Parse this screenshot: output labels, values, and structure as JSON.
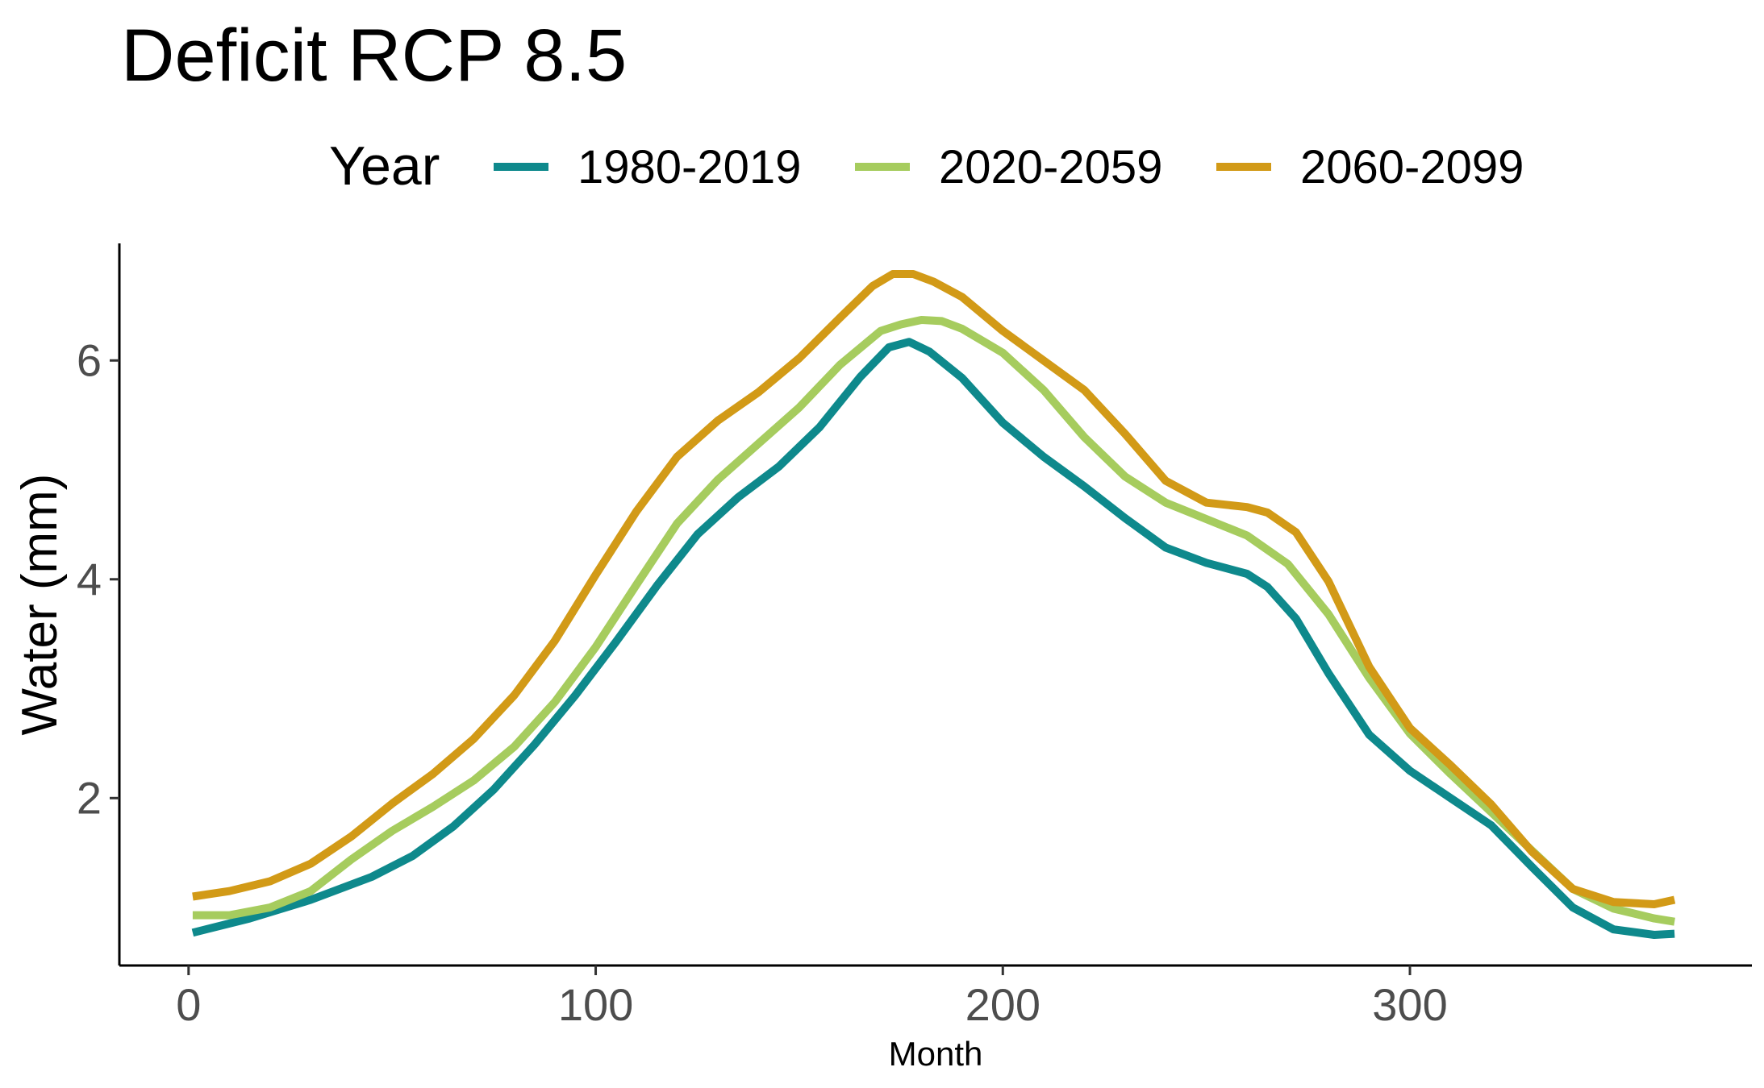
{
  "chart_data": {
    "type": "line",
    "title": "Deficit RCP 8.5",
    "xlabel": "Month",
    "ylabel": "Water (mm)",
    "xlim": [
      -17,
      384
    ],
    "ylim": [
      0.47,
      7.07
    ],
    "x_ticks": [
      0,
      100,
      200,
      300
    ],
    "y_ticks": [
      2,
      4,
      6
    ],
    "grid": false,
    "legend": {
      "title": "Year",
      "position": "top"
    },
    "series": [
      {
        "name": "1980-2019",
        "color": "#0e898c",
        "x": [
          1,
          15,
          30,
          45,
          55,
          65,
          75,
          85,
          95,
          105,
          115,
          125,
          135,
          145,
          155,
          165,
          172,
          177,
          182,
          190,
          200,
          210,
          220,
          230,
          240,
          250,
          260,
          265,
          272,
          280,
          290,
          300,
          310,
          320,
          330,
          340,
          350,
          360,
          365
        ],
        "y": [
          0.77,
          0.9,
          1.07,
          1.28,
          1.47,
          1.74,
          2.08,
          2.49,
          2.94,
          3.43,
          3.94,
          4.41,
          4.75,
          5.03,
          5.39,
          5.85,
          6.12,
          6.17,
          6.08,
          5.84,
          5.43,
          5.12,
          4.85,
          4.56,
          4.29,
          4.15,
          4.05,
          3.93,
          3.64,
          3.14,
          2.58,
          2.25,
          2.0,
          1.75,
          1.37,
          1.0,
          0.8,
          0.75,
          0.76
        ]
      },
      {
        "name": "2020-2059",
        "color": "#a6cc5e",
        "x": [
          1,
          10,
          20,
          30,
          40,
          50,
          60,
          70,
          80,
          90,
          100,
          110,
          120,
          130,
          140,
          150,
          160,
          170,
          175,
          180,
          185,
          190,
          200,
          210,
          220,
          230,
          240,
          250,
          260,
          270,
          280,
          290,
          300,
          310,
          320,
          330,
          340,
          350,
          360,
          365
        ],
        "y": [
          0.93,
          0.93,
          1.0,
          1.15,
          1.44,
          1.7,
          1.92,
          2.16,
          2.47,
          2.88,
          3.38,
          3.95,
          4.51,
          4.91,
          5.24,
          5.57,
          5.96,
          6.27,
          6.33,
          6.37,
          6.36,
          6.29,
          6.07,
          5.73,
          5.3,
          4.94,
          4.7,
          4.55,
          4.4,
          4.14,
          3.68,
          3.1,
          2.59,
          2.22,
          1.87,
          1.52,
          1.17,
          0.99,
          0.9,
          0.87
        ]
      },
      {
        "name": "2060-2099",
        "color": "#d29a17",
        "x": [
          1,
          10,
          20,
          30,
          40,
          50,
          60,
          70,
          80,
          90,
          100,
          110,
          120,
          130,
          140,
          150,
          160,
          168,
          173,
          178,
          183,
          190,
          200,
          210,
          220,
          230,
          240,
          250,
          260,
          265,
          272,
          280,
          290,
          300,
          310,
          320,
          330,
          340,
          350,
          360,
          365
        ],
        "y": [
          1.1,
          1.15,
          1.24,
          1.4,
          1.65,
          1.95,
          2.22,
          2.54,
          2.94,
          3.44,
          4.04,
          4.62,
          5.12,
          5.45,
          5.71,
          6.02,
          6.39,
          6.68,
          6.79,
          6.79,
          6.72,
          6.58,
          6.27,
          6.0,
          5.73,
          5.33,
          4.9,
          4.7,
          4.66,
          4.61,
          4.43,
          3.98,
          3.2,
          2.64,
          2.3,
          1.94,
          1.51,
          1.17,
          1.05,
          1.03,
          1.07
        ]
      }
    ]
  }
}
